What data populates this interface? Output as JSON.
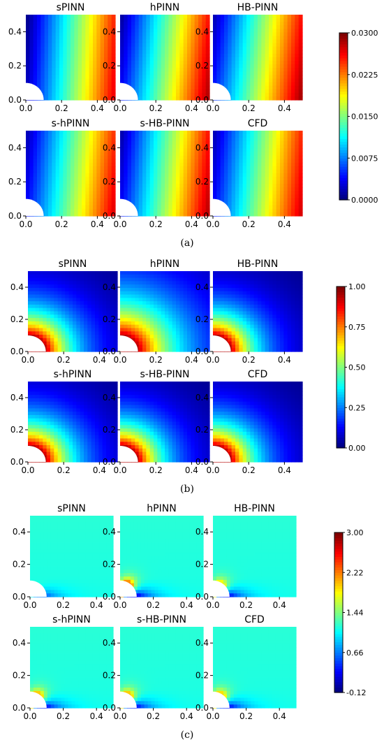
{
  "chart_data": [
    {
      "type": "heatmap",
      "label": "(a)",
      "colormap": "jet",
      "panels": [
        {
          "title": "sPINN",
          "pattern": "sweep",
          "vmin_frac": 0.0,
          "vmax_frac": 0.98,
          "bend": 0.12
        },
        {
          "title": "hPINN",
          "pattern": "sweep",
          "vmin_frac": 0.02,
          "vmax_frac": 1.0,
          "bend": 0.2
        },
        {
          "title": "HB-PINN",
          "pattern": "sweep",
          "vmin_frac": 0.04,
          "vmax_frac": 1.0,
          "bend": 0.22
        },
        {
          "title": "s-hPINN",
          "pattern": "sweep",
          "vmin_frac": 0.04,
          "vmax_frac": 0.96,
          "bend": 0.18
        },
        {
          "title": "s-HB-PINN",
          "pattern": "sweep",
          "vmin_frac": 0.03,
          "vmax_frac": 1.0,
          "bend": 0.18
        },
        {
          "title": "CFD",
          "pattern": "sweep",
          "vmin_frac": 0.04,
          "vmax_frac": 0.97,
          "bend": 0.18
        }
      ],
      "x_ticks": [
        "0.0",
        "0.2",
        "0.4"
      ],
      "y_ticks": [
        "0.0",
        "0.2",
        "0.4"
      ],
      "xlim": [
        0,
        0.5
      ],
      "ylim": [
        0,
        0.5
      ],
      "colorbar": {
        "ticks": [
          "0.0000",
          "0.0075",
          "0.0150",
          "0.0225",
          "0.0300"
        ],
        "range": [
          0,
          0.03
        ]
      }
    },
    {
      "type": "heatmap",
      "label": "(b)",
      "colormap": "jet",
      "panels": [
        {
          "title": "sPINN",
          "pattern": "radial",
          "decay": 0.17
        },
        {
          "title": "hPINN",
          "pattern": "radial",
          "decay": 0.24
        },
        {
          "title": "HB-PINN",
          "pattern": "radial",
          "decay": 0.16
        },
        {
          "title": "s-hPINN",
          "pattern": "radial",
          "decay": 0.17
        },
        {
          "title": "s-HB-PINN",
          "pattern": "radial",
          "decay": 0.16
        },
        {
          "title": "CFD",
          "pattern": "radial",
          "decay": 0.16
        }
      ],
      "x_ticks": [
        "0.0",
        "0.2",
        "0.4"
      ],
      "y_ticks": [
        "0.0",
        "0.2",
        "0.4"
      ],
      "xlim": [
        0,
        0.5
      ],
      "ylim": [
        0,
        0.5
      ],
      "colorbar": {
        "ticks": [
          "0.00",
          "0.25",
          "0.50",
          "0.75",
          "1.00"
        ],
        "range": [
          0,
          1
        ]
      }
    },
    {
      "type": "heatmap",
      "label": "(c)",
      "colormap": "jet",
      "panels": [
        {
          "title": "sPINN",
          "pattern": "lift",
          "hot": 0.0,
          "cold": 0.55
        },
        {
          "title": "hPINN",
          "pattern": "lift",
          "hot": 0.85,
          "cold": 1.0
        },
        {
          "title": "HB-PINN",
          "pattern": "lift",
          "hot": 0.55,
          "cold": 0.9
        },
        {
          "title": "s-hPINN",
          "pattern": "lift",
          "hot": 0.7,
          "cold": 0.9
        },
        {
          "title": "s-HB-PINN",
          "pattern": "lift",
          "hot": 0.7,
          "cold": 0.9
        },
        {
          "title": "CFD",
          "pattern": "lift",
          "hot": 0.65,
          "cold": 0.9
        }
      ],
      "x_ticks": [
        "0.0",
        "0.2",
        "0.4"
      ],
      "y_ticks": [
        "0.0",
        "0.2",
        "0.4"
      ],
      "xlim": [
        0,
        0.5
      ],
      "ylim": [
        0,
        0.5
      ],
      "colorbar": {
        "ticks": [
          "-0.12",
          "0.66",
          "1.44",
          "2.22",
          "3.00"
        ],
        "range": [
          -0.12,
          3.0
        ]
      }
    }
  ]
}
